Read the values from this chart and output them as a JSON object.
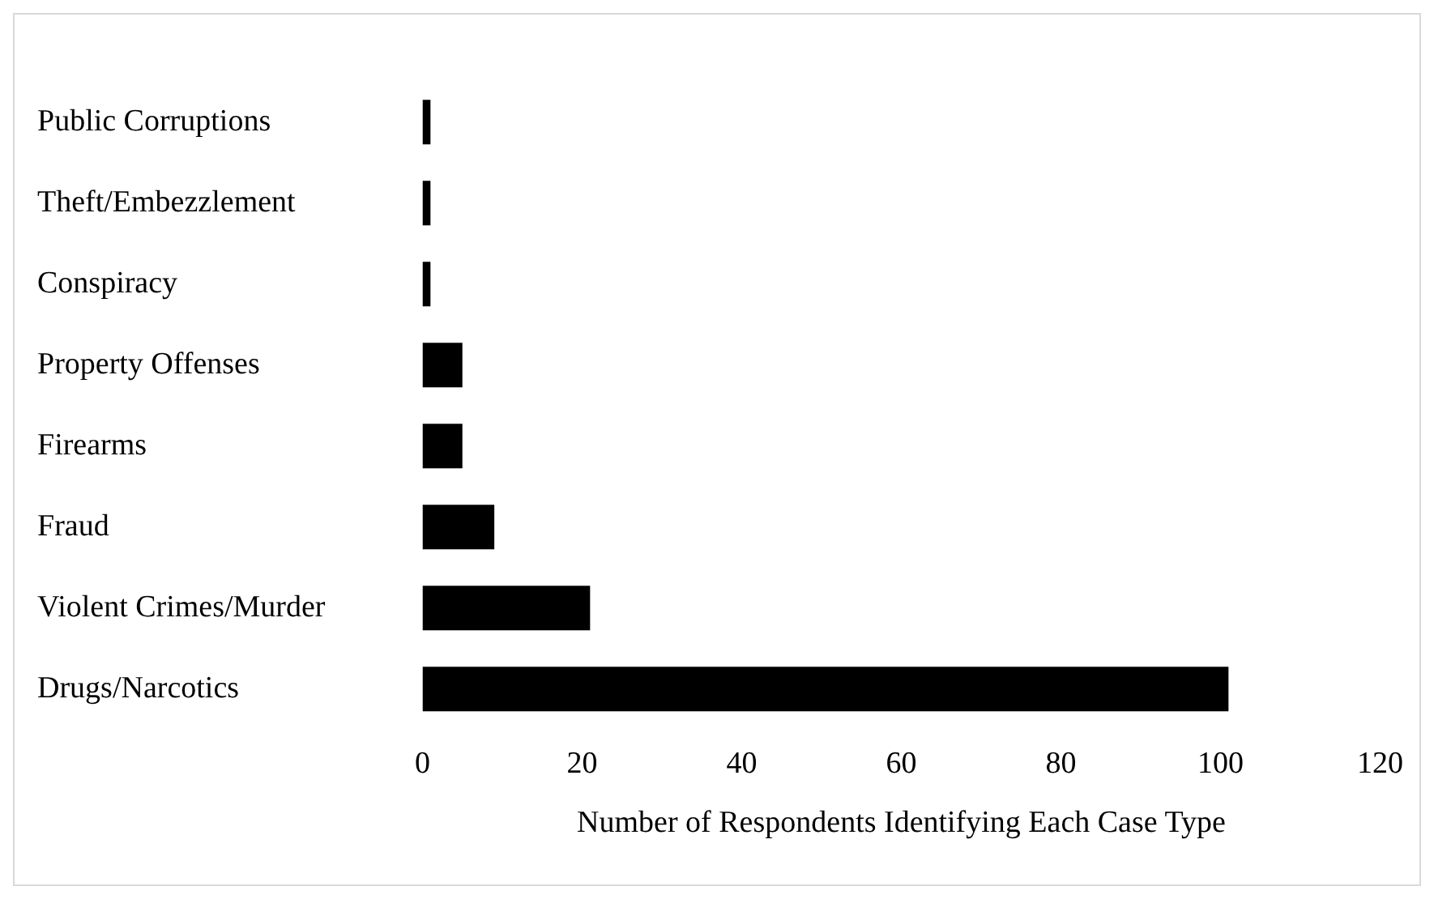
{
  "chart_data": {
    "type": "bar",
    "orientation": "horizontal",
    "xlabel": "Number of Respondents Identifying Each Case Type",
    "categories": [
      "Public Corruptions",
      "Theft/Embezzlement",
      "Conspiracy",
      "Property Offenses",
      "Firearms",
      "Fraud",
      "Violent Crimes/Murder",
      "Drugs/Narcotics"
    ],
    "values": [
      1,
      1,
      1,
      5,
      5,
      9,
      21,
      101
    ],
    "color": "#000000",
    "xlim": [
      0,
      120
    ],
    "xticks": [
      0,
      20,
      40,
      60,
      80,
      100,
      120
    ],
    "grid": false,
    "legend": false
  }
}
